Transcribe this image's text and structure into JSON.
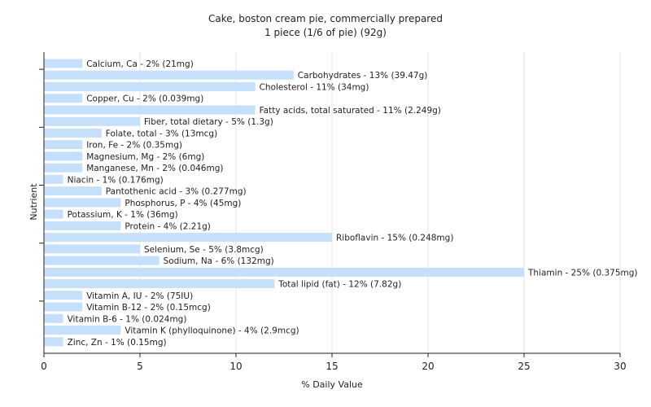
{
  "chart_data": {
    "type": "bar",
    "orientation": "horizontal",
    "title": "Cake, boston cream pie, commercially prepared",
    "subtitle": "1 piece (1/6 of pie) (92g)",
    "xlabel": "% Daily Value",
    "ylabel": "Nutrient",
    "xlim": [
      0,
      30
    ],
    "xticks": [
      0,
      5,
      10,
      15,
      20,
      25,
      30
    ],
    "grid": "vertical",
    "bar_color": "#c6dffb",
    "bars": [
      {
        "name": "Calcium, Ca",
        "value": 2,
        "label": "Calcium, Ca - 2% (21mg)"
      },
      {
        "name": "Carbohydrates",
        "value": 13,
        "label": "Carbohydrates - 13% (39.47g)"
      },
      {
        "name": "Cholesterol",
        "value": 11,
        "label": "Cholesterol - 11% (34mg)"
      },
      {
        "name": "Copper, Cu",
        "value": 2,
        "label": "Copper, Cu - 2% (0.039mg)"
      },
      {
        "name": "Fatty acids, total saturated",
        "value": 11,
        "label": "Fatty acids, total saturated - 11% (2.249g)"
      },
      {
        "name": "Fiber, total dietary",
        "value": 5,
        "label": "Fiber, total dietary - 5% (1.3g)"
      },
      {
        "name": "Folate, total",
        "value": 3,
        "label": "Folate, total - 3% (13mcg)"
      },
      {
        "name": "Iron, Fe",
        "value": 2,
        "label": "Iron, Fe - 2% (0.35mg)"
      },
      {
        "name": "Magnesium, Mg",
        "value": 2,
        "label": "Magnesium, Mg - 2% (6mg)"
      },
      {
        "name": "Manganese, Mn",
        "value": 2,
        "label": "Manganese, Mn - 2% (0.046mg)"
      },
      {
        "name": "Niacin",
        "value": 1,
        "label": "Niacin - 1% (0.176mg)"
      },
      {
        "name": "Pantothenic acid",
        "value": 3,
        "label": "Pantothenic acid - 3% (0.277mg)"
      },
      {
        "name": "Phosphorus, P",
        "value": 4,
        "label": "Phosphorus, P - 4% (45mg)"
      },
      {
        "name": "Potassium, K",
        "value": 1,
        "label": "Potassium, K - 1% (36mg)"
      },
      {
        "name": "Protein",
        "value": 4,
        "label": "Protein - 4% (2.21g)"
      },
      {
        "name": "Riboflavin",
        "value": 15,
        "label": "Riboflavin - 15% (0.248mg)"
      },
      {
        "name": "Selenium, Se",
        "value": 5,
        "label": "Selenium, Se - 5% (3.8mcg)"
      },
      {
        "name": "Sodium, Na",
        "value": 6,
        "label": "Sodium, Na - 6% (132mg)"
      },
      {
        "name": "Thiamin",
        "value": 25,
        "label": "Thiamin - 25% (0.375mg)"
      },
      {
        "name": "Total lipid (fat)",
        "value": 12,
        "label": "Total lipid (fat) - 12% (7.82g)"
      },
      {
        "name": "Vitamin A, IU",
        "value": 2,
        "label": "Vitamin A, IU - 2% (75IU)"
      },
      {
        "name": "Vitamin B-12",
        "value": 2,
        "label": "Vitamin B-12 - 2% (0.15mcg)"
      },
      {
        "name": "Vitamin B-6",
        "value": 1,
        "label": "Vitamin B-6 - 1% (0.024mg)"
      },
      {
        "name": "Vitamin K (phylloquinone)",
        "value": 4,
        "label": "Vitamin K (phylloquinone) - 4% (2.9mcg)"
      },
      {
        "name": "Zinc, Zn",
        "value": 1,
        "label": "Zinc, Zn - 1% (0.15mg)"
      }
    ]
  }
}
